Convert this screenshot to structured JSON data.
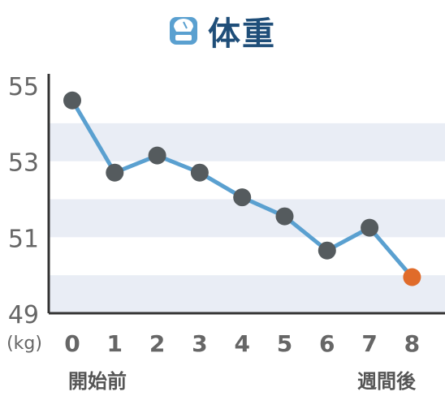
{
  "title": "体重",
  "icon": "scale-icon",
  "colors": {
    "title": "#1f4e79",
    "icon": "#5aa0d0",
    "line": "#5aa0d0",
    "point": "#555b5e",
    "final_point": "#e06b2a",
    "band": "#e9edf5"
  },
  "chart_data": {
    "type": "line",
    "x": [
      0,
      1,
      2,
      3,
      4,
      5,
      6,
      7,
      8
    ],
    "categories": [
      "0",
      "1",
      "2",
      "3",
      "4",
      "5",
      "6",
      "7",
      "8"
    ],
    "series": [
      {
        "values": [
          54.6,
          52.7,
          53.15,
          52.7,
          52.05,
          51.55,
          50.65,
          51.25,
          49.95
        ]
      }
    ],
    "ylim": [
      49,
      55
    ],
    "yticks": [
      "49",
      "51",
      "53",
      "55"
    ],
    "ylabel": "(kg)",
    "xlabel_start": "開始前",
    "xlabel_end": "週間後",
    "highlight_last_point": true
  }
}
